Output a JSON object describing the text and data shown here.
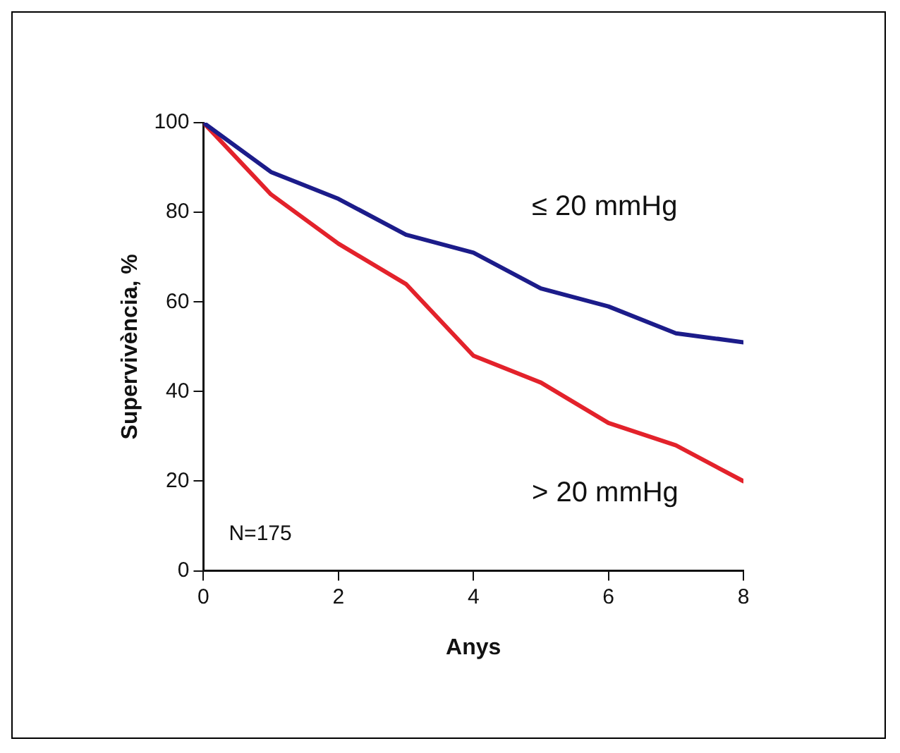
{
  "chart_data": {
    "type": "line",
    "xlabel": "Anys",
    "ylabel": "Supervivència, %",
    "x": [
      0,
      1,
      2,
      3,
      4,
      5,
      6,
      7,
      8
    ],
    "series": [
      {
        "name": "≤ 20 mmHg",
        "color": "#1c1c8a",
        "values": [
          100,
          89,
          83,
          75,
          71,
          63,
          59,
          53,
          51
        ]
      },
      {
        "name": "> 20 mmHg",
        "color": "#e3222b",
        "values": [
          100,
          84,
          73,
          64,
          48,
          42,
          33,
          28,
          20
        ]
      }
    ],
    "xlim": [
      0,
      8
    ],
    "xticks": [
      0,
      2,
      4,
      6,
      8
    ],
    "ylim": [
      0,
      100
    ],
    "yticks": [
      0,
      20,
      40,
      60,
      80,
      100
    ],
    "grid": false,
    "legend": false,
    "marker": "none",
    "line_style": "solid",
    "annotations": [
      "N=175"
    ]
  }
}
